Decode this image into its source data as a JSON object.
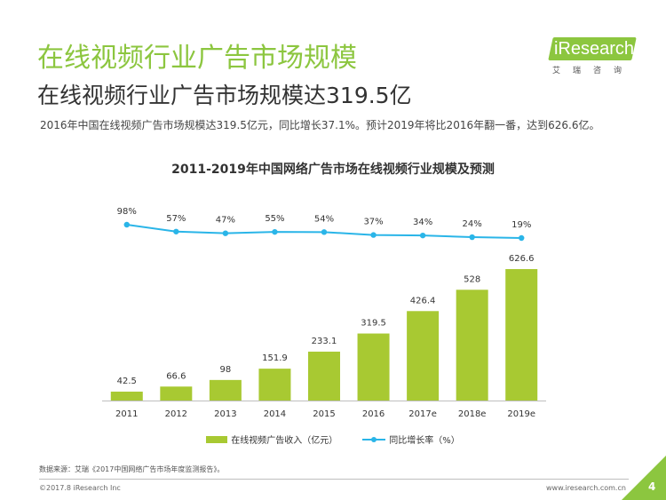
{
  "header": {
    "title": "在线视频行业广告市场规模",
    "subtitle": "在线视频行业广告市场规模达319.5亿",
    "summary": "2016年中国在线视频广告市场规模达319.5亿元，同比增长37.1%。预计2019年将比2016年翻一番，达到626.6亿。"
  },
  "logo": {
    "name": "iResearch",
    "subtitle": "艾瑞咨询"
  },
  "colors": {
    "accent": "#8cc63f",
    "bar": "#a8c932",
    "line": "#2ab5e8"
  },
  "chart_data": {
    "type": "bar",
    "title": "2011-2019年中国网络广告市场在线视频行业规模及预测",
    "categories": [
      "2011",
      "2012",
      "2013",
      "2014",
      "2015",
      "2016",
      "2017e",
      "2018e",
      "2019e"
    ],
    "series": [
      {
        "name": "在线视频广告收入（亿元）",
        "type": "bar",
        "values": [
          42.5,
          66.6,
          98,
          151.9,
          233.1,
          319.5,
          426.4,
          528,
          626.6
        ],
        "labels": [
          "42.5",
          "66.6",
          "98",
          "151.9",
          "233.1",
          "319.5",
          "426.4",
          "528",
          "626.6"
        ]
      },
      {
        "name": "同比增长率（%）",
        "type": "line",
        "values": [
          98,
          57,
          47,
          55,
          54,
          37,
          34,
          24,
          19
        ],
        "labels": [
          "98%",
          "57%",
          "47%",
          "55%",
          "54%",
          "37%",
          "34%",
          "24%",
          "19%"
        ]
      }
    ],
    "xlabel": "",
    "ylabel": "",
    "grid": false,
    "legend_position": "bottom"
  },
  "footer": {
    "source": "数据来源：艾瑞《2017中国网络广告市场年度监测报告》。",
    "copyright": "©2017.8 iResearch Inc",
    "website": "www.iresearch.com.cn",
    "page": "4"
  }
}
